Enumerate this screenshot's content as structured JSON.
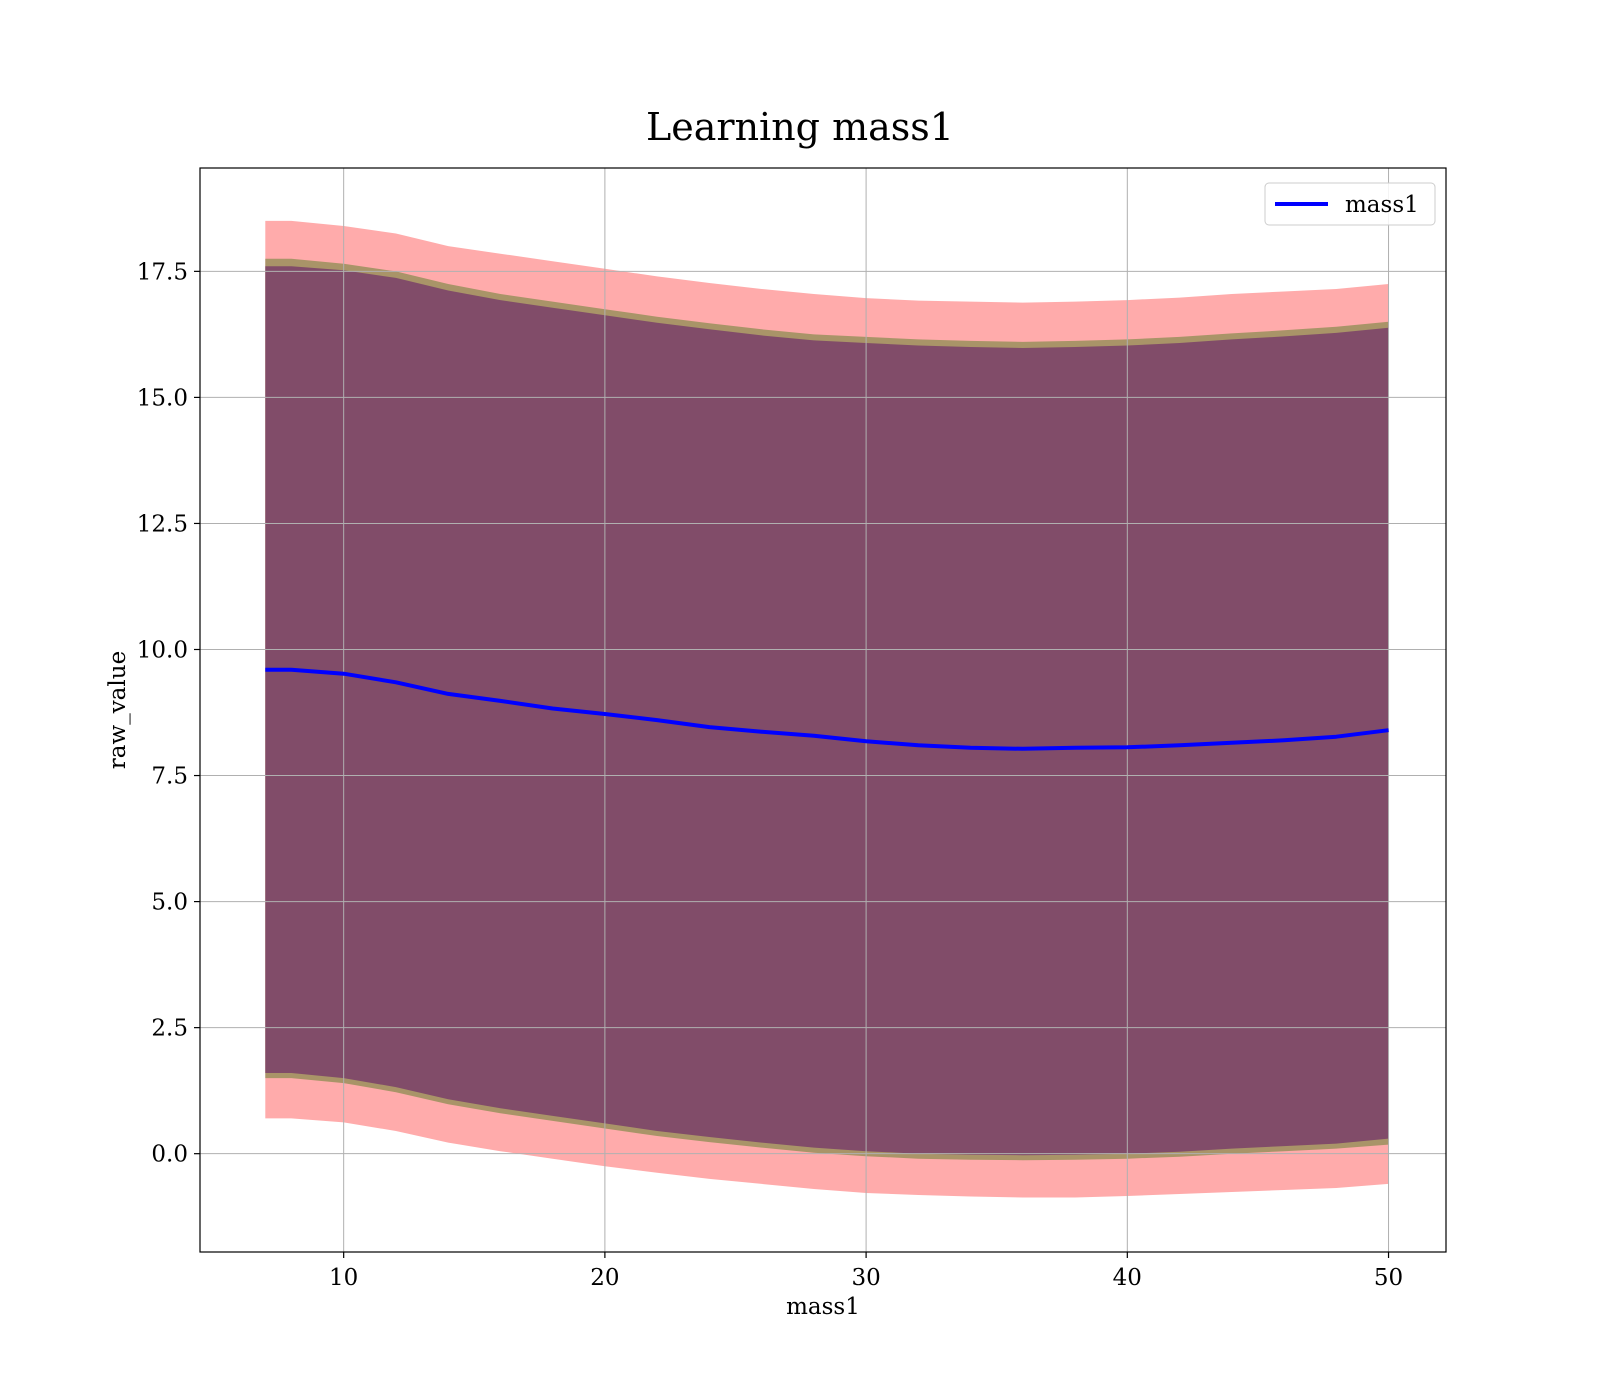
{
  "chart_data": {
    "type": "line",
    "title": "Learning mass1",
    "xlabel": "mass1",
    "ylabel": "raw_value",
    "xlim": [
      4.5,
      52.2
    ],
    "ylim": [
      -1.95,
      19.55
    ],
    "xticks": [
      10,
      20,
      30,
      40,
      50
    ],
    "xtick_labels": [
      "10",
      "20",
      "30",
      "40",
      "50"
    ],
    "yticks": [
      0.0,
      2.5,
      5.0,
      7.5,
      10.0,
      12.5,
      15.0,
      17.5
    ],
    "ytick_labels": [
      "0.0",
      "2.5",
      "5.0",
      "7.5",
      "10.0",
      "12.5",
      "15.0",
      "17.5"
    ],
    "grid": true,
    "legend_placement": "top-right",
    "x": [
      7,
      8,
      10,
      12,
      14,
      16,
      18,
      20,
      22,
      24,
      26,
      28,
      30,
      32,
      34,
      36,
      38,
      40,
      42,
      44,
      46,
      48,
      50
    ],
    "series": [
      {
        "name": "mass1",
        "color": "#0000ff",
        "values": [
          9.6,
          9.6,
          9.52,
          9.35,
          9.12,
          8.98,
          8.83,
          8.72,
          8.6,
          8.46,
          8.37,
          8.29,
          8.18,
          8.1,
          8.05,
          8.03,
          8.05,
          8.06,
          8.1,
          8.15,
          8.2,
          8.27,
          8.4
        ]
      }
    ],
    "bands": [
      {
        "color": "#ff6666",
        "opacity": 0.55,
        "upper": [
          18.5,
          18.5,
          18.4,
          18.25,
          18.0,
          17.85,
          17.7,
          17.55,
          17.4,
          17.27,
          17.15,
          17.05,
          16.97,
          16.92,
          16.9,
          16.88,
          16.9,
          16.93,
          16.98,
          17.05,
          17.1,
          17.15,
          17.25
        ],
        "lower": [
          0.7,
          0.7,
          0.62,
          0.45,
          0.22,
          0.05,
          -0.1,
          -0.25,
          -0.38,
          -0.5,
          -0.6,
          -0.7,
          -0.78,
          -0.82,
          -0.85,
          -0.87,
          -0.87,
          -0.84,
          -0.8,
          -0.76,
          -0.72,
          -0.68,
          -0.6
        ]
      },
      {
        "color": "#8c8c52",
        "opacity": 0.75,
        "upper": [
          17.75,
          17.75,
          17.65,
          17.5,
          17.25,
          17.05,
          16.9,
          16.75,
          16.6,
          16.47,
          16.35,
          16.25,
          16.2,
          16.15,
          16.12,
          16.1,
          16.12,
          16.15,
          16.2,
          16.27,
          16.33,
          16.4,
          16.5
        ],
        "lower": [
          1.5,
          1.5,
          1.4,
          1.22,
          0.98,
          0.8,
          0.65,
          0.5,
          0.35,
          0.23,
          0.12,
          0.02,
          -0.05,
          -0.1,
          -0.12,
          -0.13,
          -0.12,
          -0.1,
          -0.06,
          0.0,
          0.05,
          0.1,
          0.18
        ]
      },
      {
        "color": "#7a3f6a",
        "opacity": 0.85,
        "upper": [
          17.6,
          17.6,
          17.52,
          17.37,
          17.12,
          16.93,
          16.78,
          16.63,
          16.48,
          16.35,
          16.23,
          16.13,
          16.08,
          16.03,
          16.0,
          15.98,
          16.0,
          16.03,
          16.08,
          16.15,
          16.21,
          16.28,
          16.38
        ],
        "lower": [
          1.6,
          1.6,
          1.5,
          1.32,
          1.08,
          0.9,
          0.75,
          0.6,
          0.45,
          0.33,
          0.22,
          0.12,
          0.05,
          0.0,
          -0.02,
          -0.03,
          -0.02,
          0.0,
          0.04,
          0.1,
          0.15,
          0.2,
          0.3
        ]
      }
    ]
  }
}
